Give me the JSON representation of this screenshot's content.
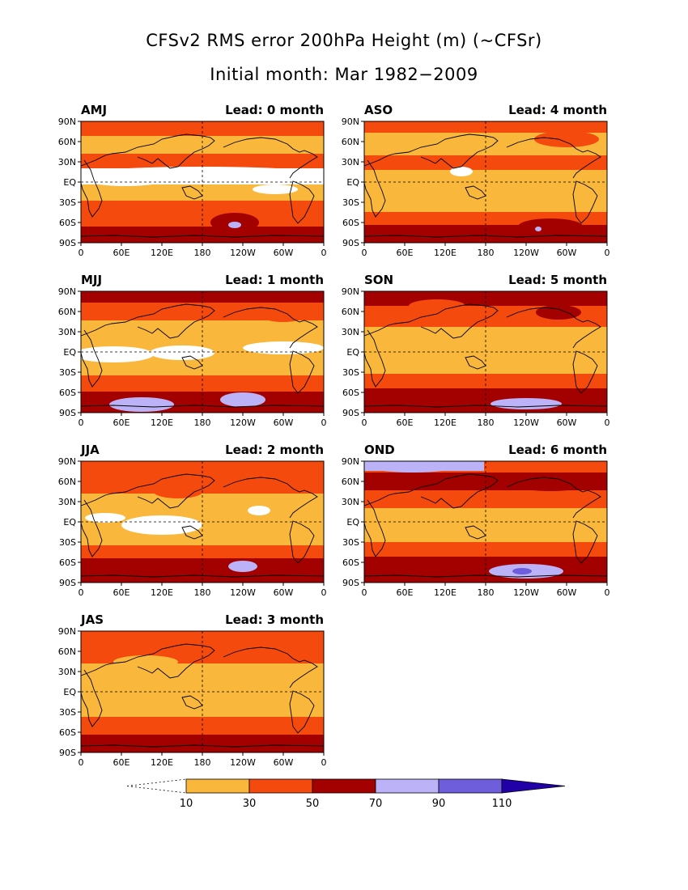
{
  "title": {
    "line1": "CFSv2 RMS error 200hPa Height (m) (~CFSr)",
    "line2": "Initial month: Mar 1982−2009"
  },
  "lat_ticks": [
    "90N",
    "60N",
    "30N",
    "EQ",
    "30S",
    "60S",
    "90S"
  ],
  "lon_ticks": [
    "0",
    "60E",
    "120E",
    "180",
    "120W",
    "60W",
    "0"
  ],
  "panels": [
    {
      "season": "AMJ",
      "lead_label": "Lead: 0 month"
    },
    {
      "season": "ASO",
      "lead_label": "Lead: 4 month"
    },
    {
      "season": "MJJ",
      "lead_label": "Lead: 1 month"
    },
    {
      "season": "SON",
      "lead_label": "Lead: 5 month"
    },
    {
      "season": "JJA",
      "lead_label": "Lead: 2 month"
    },
    {
      "season": "OND",
      "lead_label": "Lead: 6 month"
    },
    {
      "season": "JAS",
      "lead_label": "Lead: 3 month"
    }
  ],
  "colorbar": {
    "labels": [
      "10",
      "30",
      "50",
      "70",
      "90",
      "110"
    ],
    "colors": {
      "below_10": "#ffffff",
      "10_30": "#f9b83c",
      "30_50": "#f54a0e",
      "50_70": "#a30000",
      "70_90": "#bbb2f7",
      "90_110": "#6f5edb",
      "above_110": "#2200a8"
    }
  }
}
